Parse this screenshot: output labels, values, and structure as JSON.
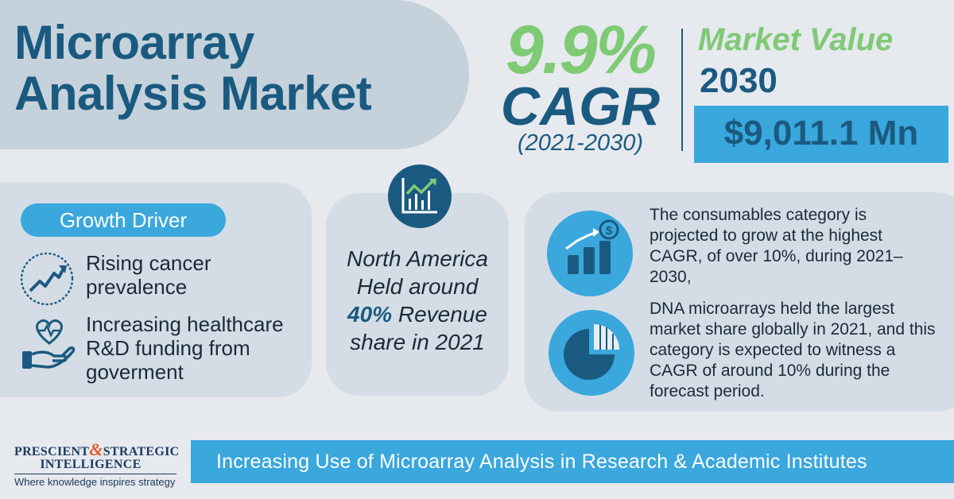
{
  "title": {
    "line1": "Microarray",
    "line2": "Analysis Market"
  },
  "cagr": {
    "percent": "9.9%",
    "label": "CAGR",
    "years": "(2021-2030)"
  },
  "market_value": {
    "label": "Market Value",
    "year": "2030",
    "value": "$9,011.1 Mn"
  },
  "growth_driver": {
    "title": "Growth Driver",
    "items": [
      {
        "text": "Rising cancer prevalence",
        "icon": "rising-trend-icon"
      },
      {
        "text": "Increasing healthcare R&D funding from goverment",
        "icon": "heart-in-hand-icon"
      }
    ]
  },
  "north_america": {
    "pre": "North America Held around",
    "highlight": "40%",
    "post": "Revenue share in 2021",
    "icon": "growth-chart-icon"
  },
  "insights": [
    {
      "text": "The consumables category is projected to grow at the highest CAGR, of over 10%, during 2021–2030,",
      "icon": "bar-chart-dollar-icon"
    },
    {
      "text": "DNA microarrays held the largest market share globally in 2021, and this category is expected to witness a CAGR of around 10% during the forecast period.",
      "icon": "pie-chart-icon"
    }
  ],
  "logo": {
    "word1": "PRESCIENT",
    "amp": "&",
    "word2": "STRATEGIC",
    "word3": "INTELLIGENCE",
    "tagline": "Where knowledge inspires strategy"
  },
  "footer": {
    "text": "Increasing Use of Microarray Analysis in Research & Academic Institutes"
  },
  "colors": {
    "navy": "#1b5a80",
    "green": "#7fca75",
    "blue": "#3aa7dd",
    "panel": "#d4dde5",
    "background": "#e6e9ee"
  }
}
